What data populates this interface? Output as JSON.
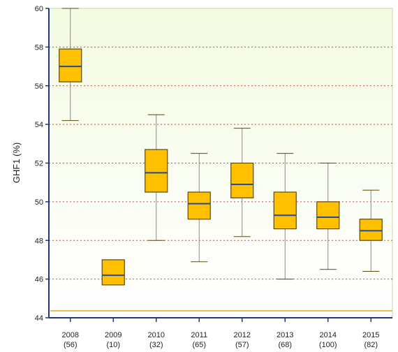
{
  "chart_data": {
    "type": "boxplot",
    "ylabel": "GHF1 (%)",
    "ylim": [
      44,
      60
    ],
    "yticks": [
      "44",
      "46",
      "48",
      "50",
      "52",
      "54",
      "56",
      "58",
      "60"
    ],
    "grid": true,
    "categories": [
      {
        "year": "2008",
        "n": "(56)"
      },
      {
        "year": "2009",
        "n": "(10)"
      },
      {
        "year": "2010",
        "n": "(32)"
      },
      {
        "year": "2011",
        "n": "(65)"
      },
      {
        "year": "2012",
        "n": "(57)"
      },
      {
        "year": "2013",
        "n": "(68)"
      },
      {
        "year": "2014",
        "n": "(100)"
      },
      {
        "year": "2015",
        "n": "(82)"
      }
    ],
    "boxes": [
      {
        "min": 54.2,
        "q1": 56.2,
        "median": 57.0,
        "q3": 57.9,
        "max": 60.0
      },
      {
        "min": 45.7,
        "q1": 45.7,
        "median": 46.2,
        "q3": 47.0,
        "max": 47.0
      },
      {
        "min": 48.0,
        "q1": 50.5,
        "median": 51.5,
        "q3": 52.7,
        "max": 54.5
      },
      {
        "min": 46.9,
        "q1": 49.1,
        "median": 49.9,
        "q3": 50.5,
        "max": 52.5
      },
      {
        "min": 48.2,
        "q1": 50.2,
        "median": 50.9,
        "q3": 52.0,
        "max": 53.8
      },
      {
        "min": 46.0,
        "q1": 48.6,
        "median": 49.3,
        "q3": 50.5,
        "max": 52.5
      },
      {
        "min": 46.5,
        "q1": 48.6,
        "median": 49.2,
        "q3": 50.0,
        "max": 52.0
      },
      {
        "min": 46.4,
        "q1": 48.0,
        "median": 48.5,
        "q3": 49.1,
        "max": 50.6
      }
    ],
    "colors": {
      "box_fill": "#FFC000",
      "box_stroke": "#5a4a10",
      "median": "#1f4aa0",
      "whisker": "#8a8a8a",
      "grid": "#c0504d",
      "axis": "#1f3a7a",
      "plot_bg_top": "#f4fbe2",
      "plot_bg_bottom": "#ffffff",
      "baseline": "#e8a020"
    }
  }
}
